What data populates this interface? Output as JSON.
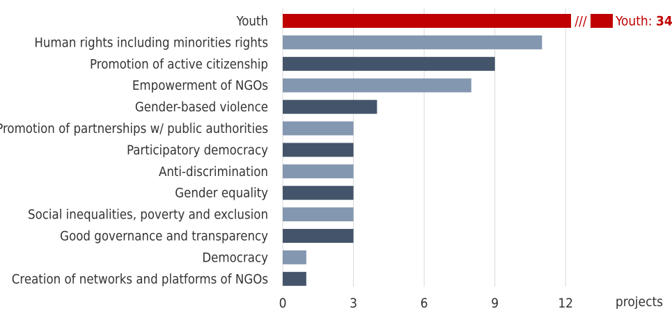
{
  "chart_data": {
    "type": "bar",
    "orientation": "horizontal",
    "categories": [
      "Youth",
      "Human rights including minorities rights",
      "Promotion of active citizenship",
      "Empowerment of NGOs",
      "Gender-based violence",
      "Promotion of partnerships w/ public authorities",
      "Participatory democracy",
      "Anti-discrimination",
      "Gender equality",
      "Social inequalities, poverty and exclusion",
      "Good governance and transparency",
      "Democracy",
      "Creation of networks and platforms of NGOs"
    ],
    "values": [
      34,
      11,
      9,
      8,
      4,
      3,
      3,
      3,
      3,
      3,
      3,
      1,
      1
    ],
    "xlim": [
      0,
      15
    ],
    "xticks": [
      0,
      3,
      6,
      9,
      12
    ],
    "xlabel": "projects",
    "ylabel": "",
    "title": "",
    "grid": "vertical",
    "legend": "none",
    "axis_break": {
      "category": "Youth",
      "marker": "///",
      "label_prefix": "Youth: ",
      "label_value": "34"
    },
    "colors": {
      "highlight": "#c00000",
      "light": "#8497b0",
      "dark": "#44546a",
      "grid": "#d9d9d9",
      "text": "#333333"
    }
  }
}
